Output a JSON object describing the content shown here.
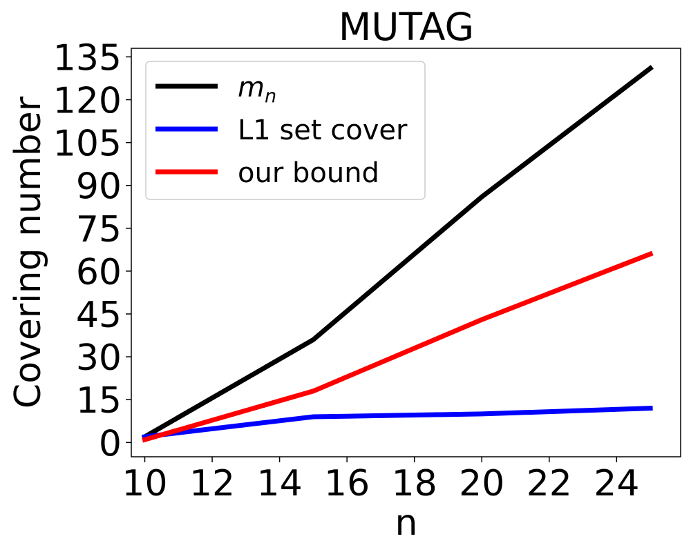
{
  "chart_data": {
    "type": "line",
    "title": "MUTAG",
    "xlabel": "n",
    "ylabel": "Covering number",
    "x": [
      10,
      15,
      20,
      25
    ],
    "xticks": [
      10,
      12,
      14,
      16,
      18,
      20,
      22,
      24
    ],
    "yticks": [
      0,
      15,
      30,
      45,
      60,
      75,
      90,
      105,
      120,
      135
    ],
    "xlim": [
      9.6,
      25.9
    ],
    "ylim": [
      -5,
      138
    ],
    "grid": false,
    "legend_position": "top-left",
    "series": [
      {
        "name": "m",
        "name_subscript": "n",
        "color": "#000000",
        "values": [
          2,
          36,
          86,
          131
        ]
      },
      {
        "name": "L1 set cover",
        "color": "#0000ff",
        "values": [
          2,
          9,
          10,
          12
        ]
      },
      {
        "name": "our bound",
        "color": "#ff0000",
        "values": [
          1,
          18,
          43,
          66
        ]
      }
    ]
  }
}
